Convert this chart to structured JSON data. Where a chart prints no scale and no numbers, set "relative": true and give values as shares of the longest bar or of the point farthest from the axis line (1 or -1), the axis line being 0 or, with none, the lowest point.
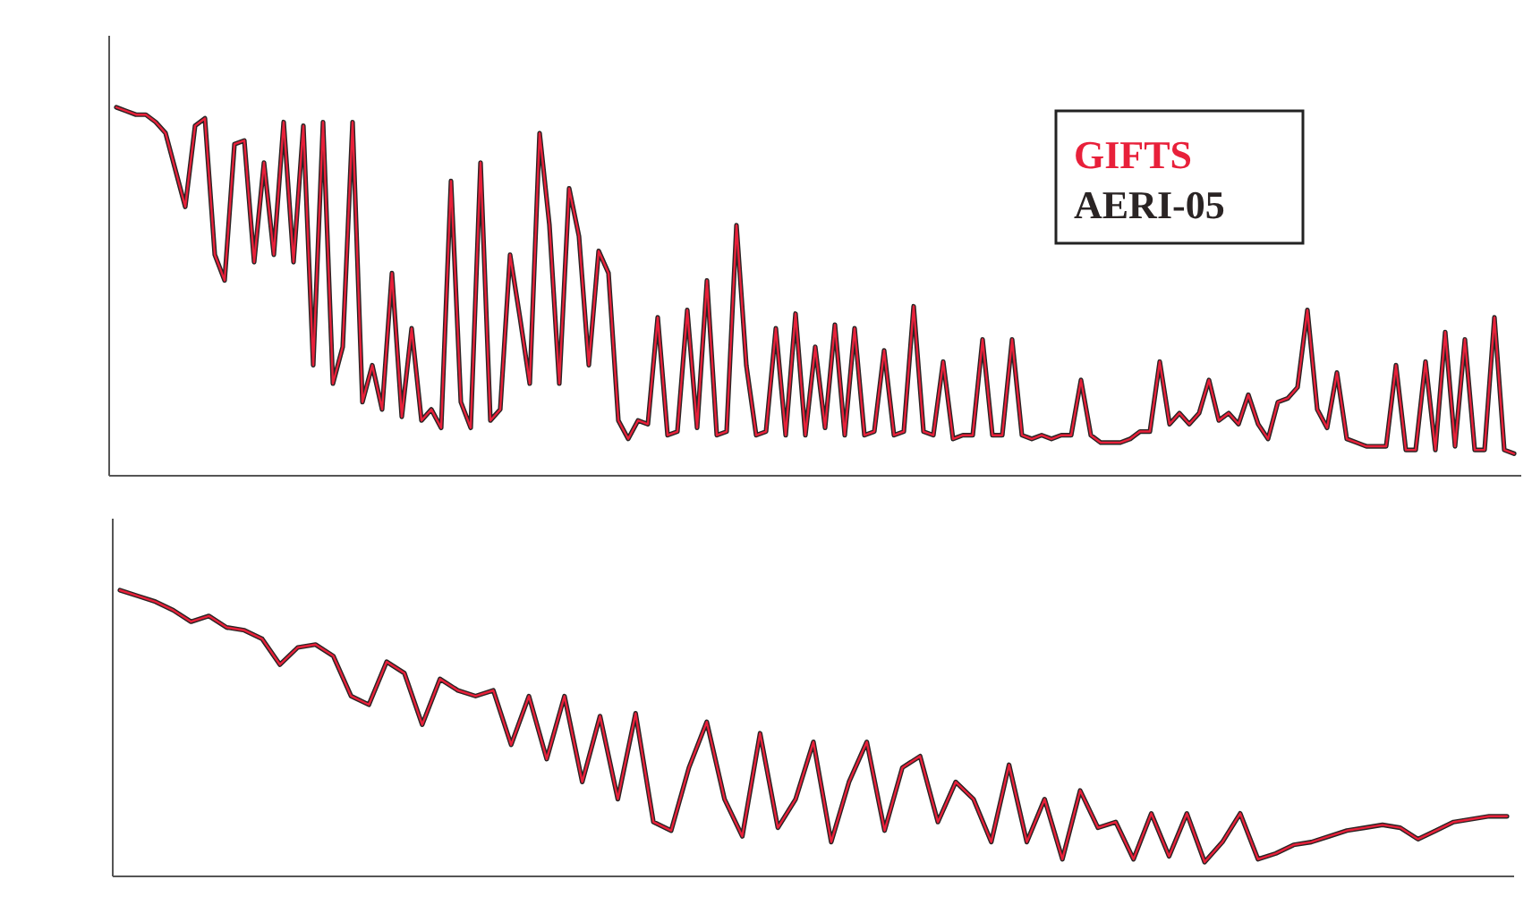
{
  "chart_data": [
    {
      "type": "line",
      "relative": true,
      "legend": "top right",
      "categories": [
        null,
        null,
        null,
        null,
        null,
        null,
        null,
        null,
        null,
        null,
        null,
        null,
        null,
        null,
        null,
        null,
        null,
        null,
        null,
        null,
        null,
        null,
        null,
        null,
        null,
        null,
        null,
        null,
        null,
        null,
        null,
        null,
        null,
        null,
        null,
        null,
        null,
        null,
        null,
        null,
        null,
        null,
        null,
        null,
        null,
        null,
        null,
        null,
        null,
        null,
        null,
        null,
        null,
        null,
        null,
        null,
        null,
        null,
        null,
        null,
        null,
        null,
        null,
        null,
        null,
        null,
        null,
        null,
        null,
        null,
        null,
        null,
        null,
        null,
        null,
        null,
        null,
        null,
        null,
        null,
        null,
        null,
        null,
        null,
        null,
        null,
        null,
        null,
        null,
        null,
        null,
        null,
        null,
        null,
        null,
        null,
        null,
        null,
        null,
        null,
        null,
        null,
        null,
        null,
        null,
        null,
        null,
        null,
        null,
        null,
        null,
        null,
        null,
        null,
        null,
        null,
        null,
        null,
        null,
        null,
        null,
        null,
        null,
        null,
        null,
        null,
        null,
        null,
        null,
        null,
        null,
        null,
        null,
        null,
        null,
        null,
        null,
        null,
        null,
        null,
        null,
        null,
        null
      ],
      "series": [
        {
          "name": "AERI-05",
          "color": "#2a2424",
          "values": [
            1.0,
            0.99,
            0.98,
            0.98,
            0.96,
            0.93,
            0.83,
            0.73,
            0.95,
            0.97,
            0.6,
            0.53,
            0.9,
            0.91,
            0.58,
            0.85,
            0.6,
            0.96,
            0.58,
            0.95,
            0.3,
            0.96,
            0.25,
            0.35,
            0.96,
            0.2,
            0.3,
            0.18,
            0.55,
            0.16,
            0.4,
            0.15,
            0.18,
            0.13,
            0.8,
            0.2,
            0.13,
            0.85,
            0.15,
            0.18,
            0.6,
            0.43,
            0.25,
            0.93,
            0.68,
            0.25,
            0.78,
            0.65,
            0.3,
            0.61,
            0.55,
            0.15,
            0.1,
            0.15,
            0.14,
            0.43,
            0.11,
            0.12,
            0.45,
            0.13,
            0.53,
            0.11,
            0.12,
            0.68,
            0.3,
            0.11,
            0.12,
            0.4,
            0.11,
            0.44,
            0.11,
            0.35,
            0.13,
            0.41,
            0.11,
            0.4,
            0.11,
            0.12,
            0.34,
            0.11,
            0.12,
            0.46,
            0.12,
            0.11,
            0.31,
            0.1,
            0.11,
            0.11,
            0.37,
            0.11,
            0.11,
            0.37,
            0.11,
            0.1,
            0.11,
            0.1,
            0.11,
            0.11,
            0.26,
            0.11,
            0.09,
            0.09,
            0.09,
            0.1,
            0.12,
            0.12,
            0.31,
            0.14,
            0.17,
            0.14,
            0.17,
            0.26,
            0.15,
            0.17,
            0.14,
            0.22,
            0.14,
            0.1,
            0.2,
            0.21,
            0.24,
            0.45,
            0.18,
            0.13,
            0.28,
            0.1,
            0.09,
            0.08,
            0.08,
            0.08,
            0.3,
            0.07,
            0.07,
            0.31,
            0.07,
            0.39,
            0.08,
            0.37,
            0.07,
            0.07,
            0.43,
            0.07,
            0.06
          ]
        },
        {
          "name": "GIFTS",
          "color": "#e8203a",
          "values": [
            1.0,
            0.99,
            0.98,
            0.98,
            0.96,
            0.93,
            0.83,
            0.73,
            0.95,
            0.97,
            0.6,
            0.53,
            0.9,
            0.91,
            0.58,
            0.85,
            0.6,
            0.96,
            0.58,
            0.95,
            0.3,
            0.96,
            0.25,
            0.35,
            0.96,
            0.2,
            0.3,
            0.18,
            0.55,
            0.16,
            0.4,
            0.15,
            0.18,
            0.13,
            0.8,
            0.2,
            0.13,
            0.85,
            0.15,
            0.18,
            0.6,
            0.43,
            0.25,
            0.93,
            0.68,
            0.25,
            0.78,
            0.65,
            0.3,
            0.61,
            0.55,
            0.15,
            0.1,
            0.15,
            0.14,
            0.43,
            0.11,
            0.12,
            0.45,
            0.13,
            0.53,
            0.11,
            0.12,
            0.68,
            0.3,
            0.11,
            0.12,
            0.4,
            0.11,
            0.44,
            0.11,
            0.35,
            0.13,
            0.41,
            0.11,
            0.4,
            0.11,
            0.12,
            0.34,
            0.11,
            0.12,
            0.46,
            0.12,
            0.11,
            0.31,
            0.1,
            0.11,
            0.11,
            0.37,
            0.11,
            0.11,
            0.37,
            0.11,
            0.1,
            0.11,
            0.1,
            0.11,
            0.11,
            0.26,
            0.11,
            0.09,
            0.09,
            0.09,
            0.1,
            0.12,
            0.12,
            0.31,
            0.14,
            0.17,
            0.14,
            0.17,
            0.26,
            0.15,
            0.17,
            0.14,
            0.22,
            0.14,
            0.1,
            0.2,
            0.21,
            0.24,
            0.45,
            0.18,
            0.13,
            0.28,
            0.1,
            0.09,
            0.08,
            0.08,
            0.08,
            0.3,
            0.07,
            0.07,
            0.31,
            0.07,
            0.39,
            0.08,
            0.37,
            0.07,
            0.07,
            0.43,
            0.07,
            0.06
          ]
        }
      ]
    },
    {
      "type": "line",
      "relative": true,
      "categories": [
        null,
        null,
        null,
        null,
        null,
        null,
        null,
        null,
        null,
        null,
        null,
        null,
        null,
        null,
        null,
        null,
        null,
        null,
        null,
        null,
        null,
        null,
        null,
        null,
        null,
        null,
        null,
        null,
        null,
        null,
        null,
        null,
        null,
        null,
        null,
        null,
        null,
        null,
        null,
        null,
        null,
        null,
        null,
        null,
        null,
        null,
        null,
        null,
        null,
        null,
        null,
        null,
        null,
        null,
        null,
        null,
        null,
        null,
        null,
        null,
        null,
        null,
        null,
        null,
        null,
        null,
        null,
        null,
        null,
        null,
        null,
        null,
        null,
        null,
        null,
        null,
        null,
        null,
        null
      ],
      "series": [
        {
          "color": "#2a2424",
          "values": [
            1.0,
            0.98,
            0.96,
            0.93,
            0.89,
            0.91,
            0.87,
            0.86,
            0.83,
            0.74,
            0.8,
            0.81,
            0.77,
            0.63,
            0.6,
            0.75,
            0.71,
            0.53,
            0.69,
            0.65,
            0.63,
            0.65,
            0.46,
            0.63,
            0.41,
            0.63,
            0.33,
            0.56,
            0.27,
            0.57,
            0.19,
            0.16,
            0.38,
            0.54,
            0.27,
            0.14,
            0.5,
            0.17,
            0.27,
            0.47,
            0.12,
            0.33,
            0.47,
            0.16,
            0.38,
            0.42,
            0.19,
            0.33,
            0.27,
            0.12,
            0.39,
            0.12,
            0.27,
            0.06,
            0.3,
            0.17,
            0.19,
            0.06,
            0.22,
            0.07,
            0.22,
            0.05,
            0.12,
            0.22,
            0.06,
            0.08,
            0.11,
            0.12,
            0.14,
            0.16,
            0.17,
            0.18,
            0.17,
            0.13,
            0.16,
            0.19,
            0.2,
            0.21,
            0.21
          ]
        },
        {
          "color": "#e8203a",
          "values": [
            1.0,
            0.98,
            0.96,
            0.93,
            0.89,
            0.91,
            0.87,
            0.86,
            0.83,
            0.74,
            0.8,
            0.81,
            0.77,
            0.63,
            0.6,
            0.75,
            0.71,
            0.53,
            0.69,
            0.65,
            0.63,
            0.65,
            0.46,
            0.63,
            0.41,
            0.63,
            0.33,
            0.56,
            0.27,
            0.57,
            0.19,
            0.16,
            0.38,
            0.54,
            0.27,
            0.14,
            0.5,
            0.17,
            0.27,
            0.47,
            0.12,
            0.33,
            0.47,
            0.16,
            0.38,
            0.42,
            0.19,
            0.33,
            0.27,
            0.12,
            0.39,
            0.12,
            0.27,
            0.06,
            0.3,
            0.17,
            0.19,
            0.06,
            0.22,
            0.07,
            0.22,
            0.05,
            0.12,
            0.22,
            0.06,
            0.08,
            0.11,
            0.12,
            0.14,
            0.16,
            0.17,
            0.18,
            0.17,
            0.13,
            0.16,
            0.19,
            0.2,
            0.21,
            0.21
          ]
        }
      ]
    }
  ]
}
